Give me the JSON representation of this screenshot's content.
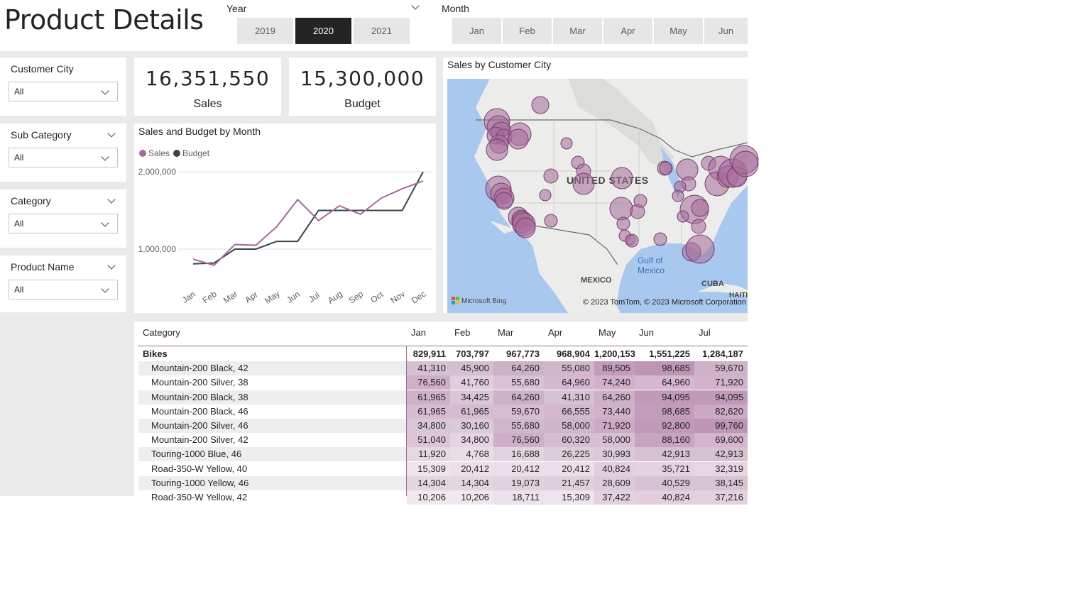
{
  "page": {
    "title": "Product Details"
  },
  "year_slicer": {
    "label": "Year",
    "options": [
      "2019",
      "2020",
      "2021"
    ],
    "selected": "2020"
  },
  "month_slicer": {
    "label": "Month",
    "options": [
      "Jan",
      "Feb",
      "Mar",
      "Apr",
      "May",
      "Jun"
    ]
  },
  "filters": [
    {
      "title": "Customer City",
      "value": "All",
      "header_chevron": false
    },
    {
      "title": "Sub Category",
      "value": "All",
      "header_chevron": true
    },
    {
      "title": "Category",
      "value": "All",
      "header_chevron": true
    },
    {
      "title": "Product Name",
      "value": "All",
      "header_chevron": true
    }
  ],
  "kpis": {
    "sales": {
      "value": "16,351,550",
      "label": "Sales"
    },
    "budget": {
      "value": "15,300,000",
      "label": "Budget"
    }
  },
  "line_chart": {
    "title": "Sales and Budget by Month",
    "legend": [
      {
        "name": "Sales",
        "color": "#a66999"
      },
      {
        "name": "Budget",
        "color": "#374649"
      }
    ],
    "y_ticks": [
      "2,000,000",
      "1,000,000"
    ]
  },
  "map": {
    "title": "Sales by Customer City",
    "labels": {
      "us": "UNITED STATES",
      "gulf": "Gulf of\nMexico",
      "mexico": "MEXICO",
      "cuba": "CUBA",
      "haiti": "HAITI"
    },
    "bing": "Microsoft Bing",
    "copyright": "© 2023 TomTom, © 2023 Microsoft Corporation",
    "bubble_color": "#a66999"
  },
  "chart_data": {
    "type": "line",
    "x": [
      "Jan",
      "Feb",
      "Mar",
      "Apr",
      "May",
      "Jun",
      "Jul",
      "Aug",
      "Sep",
      "Oct",
      "Nov",
      "Dec"
    ],
    "series": [
      {
        "name": "Sales",
        "values": [
          870000,
          790000,
          1060000,
          1050000,
          1290000,
          1640000,
          1370000,
          1560000,
          1450000,
          1660000,
          1780000,
          1880000
        ]
      },
      {
        "name": "Budget",
        "values": [
          810000,
          820000,
          1000000,
          1000000,
          1100000,
          1100000,
          1500000,
          1500000,
          1500000,
          1500000,
          1500000,
          2000000
        ]
      }
    ],
    "ylim": [
      600000,
      2100000
    ],
    "y_ticks": [
      1000000,
      2000000
    ],
    "legend_position": "top-left",
    "grid": true
  },
  "matrix": {
    "row_header": "Category",
    "columns": [
      "Jan",
      "Feb",
      "Mar",
      "Apr",
      "May",
      "Jun",
      "Jul"
    ],
    "rows": [
      {
        "label": "Bikes",
        "bold": true,
        "values": [
          "829,911",
          "703,797",
          "967,773",
          "968,904",
          "1,200,153",
          "1,551,225",
          "1,284,187"
        ]
      },
      {
        "label": "Mountain-200 Black, 42",
        "values": [
          "41,310",
          "45,900",
          "64,260",
          "55,080",
          "89,505",
          "98,685",
          "59,670"
        ]
      },
      {
        "label": "Mountain-200 Silver, 38",
        "values": [
          "76,560",
          "41,760",
          "55,680",
          "64,960",
          "74,240",
          "64,960",
          "71,920"
        ]
      },
      {
        "label": "Mountain-200 Black, 38",
        "values": [
          "61,965",
          "34,425",
          "64,260",
          "41,310",
          "64,260",
          "94,095",
          "94,095"
        ]
      },
      {
        "label": "Mountain-200 Black, 46",
        "values": [
          "61,965",
          "61,965",
          "59,670",
          "66,555",
          "73,440",
          "98,685",
          "82,620"
        ]
      },
      {
        "label": "Mountain-200 Silver, 46",
        "values": [
          "34,800",
          "30,160",
          "55,680",
          "58,000",
          "71,920",
          "92,800",
          "99,760"
        ]
      },
      {
        "label": "Mountain-200 Silver, 42",
        "values": [
          "51,040",
          "34,800",
          "76,560",
          "60,320",
          "58,000",
          "88,160",
          "69,600"
        ]
      },
      {
        "label": "Touring-1000 Blue, 46",
        "values": [
          "11,920",
          "4,768",
          "16,688",
          "26,225",
          "30,993",
          "42,913",
          "42,913"
        ]
      },
      {
        "label": "Road-350-W Yellow, 40",
        "values": [
          "15,309",
          "20,412",
          "20,412",
          "20,412",
          "40,824",
          "35,721",
          "32,319"
        ]
      },
      {
        "label": "Touring-1000 Yellow, 46",
        "values": [
          "14,304",
          "14,304",
          "19,073",
          "21,457",
          "28,609",
          "40,529",
          "38,145"
        ]
      },
      {
        "label": "Road-350-W Yellow, 42",
        "values": [
          "10,206",
          "10,206",
          "18,711",
          "15,309",
          "37,422",
          "40,824",
          "37,216"
        ]
      }
    ]
  }
}
